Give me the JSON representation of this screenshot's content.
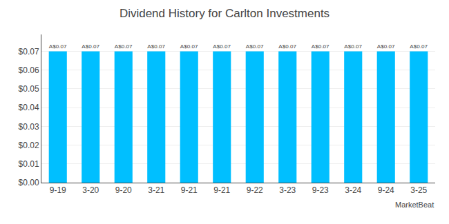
{
  "chart_data": {
    "type": "bar",
    "title": "Dividend History for Carlton Investments",
    "categories": [
      "9-19",
      "3-20",
      "9-20",
      "3-21",
      "9-21",
      "9-21",
      "9-22",
      "3-23",
      "9-23",
      "3-24",
      "9-24",
      "3-25"
    ],
    "values": [
      0.07,
      0.07,
      0.07,
      0.07,
      0.07,
      0.07,
      0.07,
      0.07,
      0.07,
      0.07,
      0.07,
      0.07
    ],
    "value_labels": [
      "A$0.07",
      "A$0.07",
      "A$0.07",
      "A$0.07",
      "A$0.07",
      "A$0.07",
      "A$0.07",
      "A$0.07",
      "A$0.07",
      "A$0.07",
      "A$0.07",
      "A$0.07"
    ],
    "data_labels": true,
    "color": "#00bfff",
    "ylim": [
      0.0,
      0.079
    ],
    "yticks": [
      {
        "value": 0.0,
        "label": "$0.00"
      },
      {
        "value": 0.01,
        "label": "$0.01"
      },
      {
        "value": 0.02,
        "label": "$0.02"
      },
      {
        "value": 0.03,
        "label": "$0.03"
      },
      {
        "value": 0.04,
        "label": "$0.04"
      },
      {
        "value": 0.04,
        "label": "$0.04"
      },
      {
        "value": 0.05,
        "label": "$0.05"
      },
      {
        "value": 0.06,
        "label": "$0.06"
      },
      {
        "value": 0.07,
        "label": "$0.07"
      }
    ],
    "grid": true,
    "annotations": [
      "MarketBeat"
    ]
  }
}
